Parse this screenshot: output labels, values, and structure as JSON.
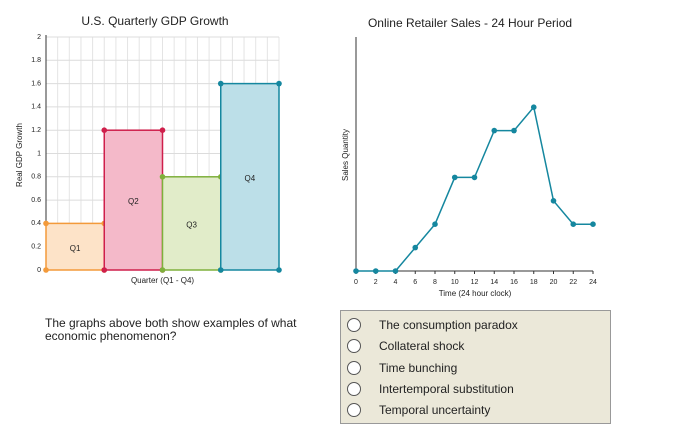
{
  "chart_data": [
    {
      "type": "bar",
      "title": "U.S. Quarterly GDP Growth",
      "x_label": "Quarter (Q1 - Q4)",
      "y_label": "Real GDP Growth",
      "categories": [
        "Q1",
        "Q2",
        "Q3",
        "Q4"
      ],
      "values": [
        0.4,
        1.2,
        0.8,
        1.6
      ],
      "colors": [
        "#f39a3a",
        "#cf1f4b",
        "#7fb03c",
        "#15879f"
      ],
      "fills": [
        "#fde3c8",
        "#f4b9c9",
        "#e1ecc9",
        "#bcdfe8"
      ],
      "ylim": [
        0,
        2
      ],
      "yticks": [
        0,
        0.2,
        0.4,
        0.6,
        0.8,
        1,
        1.2,
        1.4,
        1.6,
        1.8,
        2
      ],
      "grid": true
    },
    {
      "type": "line",
      "title": "Online Retailer Sales - 24 Hour Period",
      "x_label": "Time (24 hour clock)",
      "y_label": "Sales Quantity",
      "x": [
        0,
        2,
        4,
        6,
        8,
        10,
        12,
        14,
        16,
        18,
        20,
        22,
        24
      ],
      "values": [
        0,
        0,
        0,
        1,
        2,
        4,
        4,
        6,
        6,
        7,
        3,
        2,
        2
      ],
      "color": "#15879f",
      "xlim": [
        0,
        24
      ],
      "xticks": [
        0,
        2,
        4,
        6,
        8,
        10,
        12,
        14,
        16,
        18,
        20,
        22,
        24
      ],
      "ylim": [
        0,
        10
      ],
      "grid": false
    }
  ],
  "question": "The graphs above both show examples of what economic phenomenon?",
  "options": [
    "The consumption paradox",
    "Collateral shock",
    "Time bunching",
    "Intertemporal substitution",
    "Temporal uncertainty"
  ]
}
